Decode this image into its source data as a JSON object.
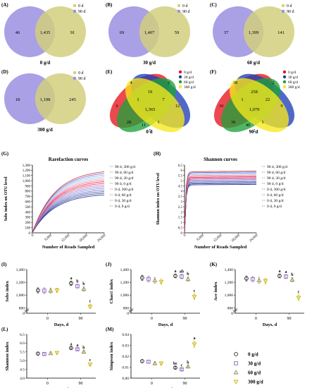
{
  "colors": {
    "purple": "#9b8fe0",
    "olive": "#d2cf7e",
    "red": "#e8141e",
    "blue": "#1f3fb7",
    "green": "#1fa23a",
    "yellow": "#f7e81c",
    "marker_0": "#222222",
    "marker_30": "#8a66b8",
    "marker_60": "#8e8a46",
    "marker_300": "#c8b400"
  },
  "venn_pairs": [
    {
      "panel": "(A)",
      "left": "46",
      "mid": "1,435",
      "right": "91",
      "xlabel": "0 g/d",
      "legend": [
        "0 d",
        "90 d"
      ]
    },
    {
      "panel": "(B)",
      "left": "69",
      "mid": "1,407",
      "right": "59",
      "xlabel": "30 g/d",
      "legend": [
        "0 d",
        "90 d"
      ]
    },
    {
      "panel": "(C)",
      "left": "37",
      "mid": "1,399",
      "right": "141",
      "xlabel": "60 g/d",
      "legend": [
        "0 d",
        "90 d"
      ]
    },
    {
      "panel": "(D)",
      "left": "18",
      "mid": "1,198",
      "right": "245",
      "xlabel": "300 g/d",
      "legend": [
        "0 d",
        "90 d"
      ]
    }
  ],
  "venn4": [
    {
      "panel": "(E)",
      "xlabel": "0 d",
      "legend": [
        "0 g/d",
        "30 g/d",
        "60 g/d",
        "300 g/d"
      ],
      "nums": [
        "4",
        "6",
        "6",
        "19",
        "12",
        "1",
        "1,365",
        "7",
        "28",
        "11",
        "1",
        "5"
      ]
    },
    {
      "panel": "(F)",
      "xlabel": "90 d",
      "legend": [
        "0 g/d",
        "30 g/d",
        "60 g/d",
        "300 g/d"
      ],
      "nums": [
        "38",
        "2",
        "10",
        "258",
        "9",
        "1",
        "1,079",
        "22",
        "39",
        "40",
        "1",
        "2"
      ]
    }
  ],
  "rarefaction": {
    "panel": "(G)",
    "title": "Rarefaction curves",
    "xlabel": "Number of Reads Sampled",
    "ylabel": "Sobs index on OTU level",
    "yticks": [
      "0",
      "100",
      "200",
      "300",
      "400",
      "500",
      "600",
      "700",
      "800",
      "900",
      "1,000",
      "1,100",
      "1,200",
      "1,300"
    ],
    "xticks": [
      "0",
      "6,000",
      "12,000",
      "18,000",
      "24,000"
    ],
    "legend": [
      "90 d, 300 g/d",
      "90 d, 60 g/d",
      "90 d, 30 g/d",
      "90 d, 0 g/d",
      "0 d, 300 g/d",
      "0 d, 60 g/d",
      "0 d, 30 g/d",
      "0 d, 0 g/d"
    ]
  },
  "shannon_curves": {
    "panel": "(H)",
    "title": "Shannon curves",
    "xlabel": "Number of Reads Sampled",
    "ylabel": "Shannon index on OTU level",
    "yticks": [
      "0",
      "0.5",
      "1",
      "1.5",
      "2",
      "2.5",
      "3",
      "3.5",
      "4",
      "4.5",
      "5",
      "5.5",
      "6",
      "6.5"
    ],
    "xticks": [
      "0",
      "6,000",
      "12,000",
      "18,000",
      "24,000"
    ],
    "legend": [
      "90 d, 300 g/d",
      "90 d, 60 g/d",
      "90 d, 30 g/d",
      "90 d, 0 g/d",
      "0 d, 300 g/d",
      "0 d, 60 g/d",
      "0 d, 30 g/d",
      "0 d, 0 g/d"
    ]
  },
  "legend_groups": [
    "0 g/d",
    "30 g/d",
    "60 g/d",
    "300 g/d"
  ],
  "chart_data": [
    {
      "type": "scatter",
      "panel": "(I)",
      "ylabel": "Sobs index",
      "xlabel": "Days, d",
      "categories": [
        "0",
        "90"
      ],
      "ylim": [
        0,
        1400
      ],
      "yticks": [
        "0",
        "800",
        "1,000",
        "1,200",
        "1,400"
      ],
      "series": [
        {
          "name": "0 g/d",
          "values": [
            1075,
            1185
          ],
          "err": [
            40,
            35
          ],
          "letters": [
            "",
            "a"
          ]
        },
        {
          "name": "30 g/d",
          "values": [
            1070,
            1140
          ],
          "err": [
            45,
            30
          ],
          "letters": [
            "",
            "b"
          ]
        },
        {
          "name": "60 g/d",
          "values": [
            1070,
            1095
          ],
          "err": [
            40,
            35
          ],
          "letters": [
            "",
            "b"
          ]
        },
        {
          "name": "300 g/d",
          "values": [
            1075,
            820
          ],
          "err": [
            35,
            40
          ],
          "letters": [
            "",
            "c"
          ]
        }
      ]
    },
    {
      "type": "scatter",
      "panel": "(J)",
      "ylabel": "Chao1 index",
      "xlabel": "Days, d",
      "categories": [
        "0",
        "90"
      ],
      "ylim": [
        0,
        1400
      ],
      "yticks": [
        "0",
        "800",
        "1,000",
        "1,200",
        "1,400"
      ],
      "series": [
        {
          "name": "0 g/d",
          "values": [
            1270,
            1300
          ],
          "err": [
            40,
            30
          ],
          "letters": [
            "",
            "a"
          ]
        },
        {
          "name": "30 g/d",
          "values": [
            1250,
            1290
          ],
          "err": [
            45,
            35
          ],
          "letters": [
            "",
            "ab"
          ]
        },
        {
          "name": "60 g/d",
          "values": [
            1230,
            1250
          ],
          "err": [
            45,
            35
          ],
          "letters": [
            "",
            "b"
          ]
        },
        {
          "name": "300 g/d",
          "values": [
            1210,
            975
          ],
          "err": [
            40,
            45
          ],
          "letters": [
            "",
            "c"
          ]
        }
      ]
    },
    {
      "type": "scatter",
      "panel": "(K)",
      "ylabel": "Ace index",
      "xlabel": "Days, d",
      "categories": [
        "0",
        "90"
      ],
      "ylim": [
        0,
        1400
      ],
      "yticks": [
        "0",
        "800",
        "1,000",
        "1,200",
        "1,400"
      ],
      "series": [
        {
          "name": "0 g/d",
          "values": [
            1260,
            1300
          ],
          "err": [
            40,
            30
          ],
          "letters": [
            "",
            "a"
          ]
        },
        {
          "name": "30 g/d",
          "values": [
            1250,
            1290
          ],
          "err": [
            40,
            30
          ],
          "letters": [
            "",
            "a"
          ]
        },
        {
          "name": "60 g/d",
          "values": [
            1230,
            1240
          ],
          "err": [
            50,
            35
          ],
          "letters": [
            "",
            "b"
          ]
        },
        {
          "name": "300 g/d",
          "values": [
            1220,
            960
          ],
          "err": [
            45,
            45
          ],
          "letters": [
            "",
            "c"
          ]
        }
      ]
    },
    {
      "type": "scatter",
      "panel": "(L)",
      "ylabel": "Shannon index",
      "xlabel": "Days, d",
      "categories": [
        "0",
        "90"
      ],
      "ylim": [
        4.0,
        6.5
      ],
      "yticks": [
        "4.0",
        "4.5",
        "5.0",
        "5.5",
        "6.0",
        "6.5"
      ],
      "series": [
        {
          "name": "0 g/d",
          "values": [
            5.4,
            5.72
          ],
          "err": [
            0.08,
            0.06
          ],
          "letters": [
            "",
            "a"
          ]
        },
        {
          "name": "30 g/d",
          "values": [
            5.38,
            5.65
          ],
          "err": [
            0.07,
            0.06
          ],
          "letters": [
            "",
            "a"
          ]
        },
        {
          "name": "60 g/d",
          "values": [
            5.42,
            5.5
          ],
          "err": [
            0.08,
            0.07
          ],
          "letters": [
            "",
            "b"
          ]
        },
        {
          "name": "300 g/d",
          "values": [
            5.45,
            4.78
          ],
          "err": [
            0.08,
            0.08
          ],
          "letters": [
            "",
            "c"
          ]
        }
      ]
    },
    {
      "type": "scatter",
      "panel": "(M)",
      "ylabel": "Simpson index",
      "xlabel": "Days, d",
      "categories": [
        "0",
        "90"
      ],
      "ylim": [
        0,
        0.04
      ],
      "yticks": [
        "0.00",
        "0.01",
        "0.02",
        "0.03",
        "0.04"
      ],
      "series": [
        {
          "name": "0 g/d",
          "values": [
            0.0155,
            0.0095
          ],
          "err": [
            0.0015,
            0.001
          ],
          "letters": [
            "",
            "bc"
          ]
        },
        {
          "name": "30 g/d",
          "values": [
            0.015,
            0.008
          ],
          "err": [
            0.0015,
            0.001
          ],
          "letters": [
            "",
            "c"
          ]
        },
        {
          "name": "60 g/d",
          "values": [
            0.0135,
            0.0105
          ],
          "err": [
            0.0015,
            0.001
          ],
          "letters": [
            "",
            "b"
          ]
        },
        {
          "name": "300 g/d",
          "values": [
            0.0135,
            0.031
          ],
          "err": [
            0.0015,
            0.003
          ],
          "letters": [
            "",
            "a"
          ]
        }
      ]
    }
  ]
}
